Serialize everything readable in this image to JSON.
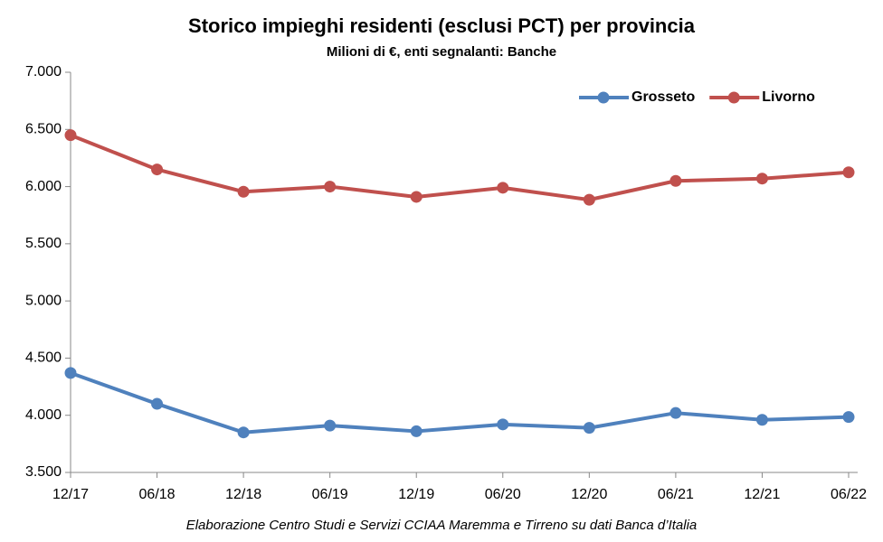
{
  "chart_data": {
    "type": "line",
    "title": "Storico impieghi residenti (esclusi PCT) per provincia",
    "subtitle": "Milioni di €, enti segnalanti: Banche",
    "note": "Elaborazione Centro Studi e Servizi CCIAA Maremma e Tirreno su dati Banca d’Italia",
    "categories": [
      "12/17",
      "06/18",
      "12/18",
      "06/19",
      "12/19",
      "06/20",
      "12/20",
      "06/21",
      "12/21",
      "06/22"
    ],
    "series": [
      {
        "name": "Grosseto",
        "color": "#4f81bd",
        "values": [
          4370,
          4100,
          3850,
          3910,
          3860,
          3920,
          3890,
          4020,
          3960,
          3985
        ]
      },
      {
        "name": "Livorno",
        "color": "#c0504d",
        "values": [
          6450,
          6150,
          5955,
          6000,
          5910,
          5990,
          5885,
          6050,
          6070,
          6125
        ]
      }
    ],
    "ylim": [
      3500,
      7000
    ],
    "yticks": [
      {
        "value": 3500,
        "label": "3.500"
      },
      {
        "value": 4000,
        "label": "4.000"
      },
      {
        "value": 4500,
        "label": "4.500"
      },
      {
        "value": 5000,
        "label": "5.000"
      },
      {
        "value": 5500,
        "label": "5.500"
      },
      {
        "value": 6000,
        "label": "6.000"
      },
      {
        "value": 6500,
        "label": "6.500"
      },
      {
        "value": 7000,
        "label": "7.000"
      }
    ],
    "legend": "top-right"
  }
}
